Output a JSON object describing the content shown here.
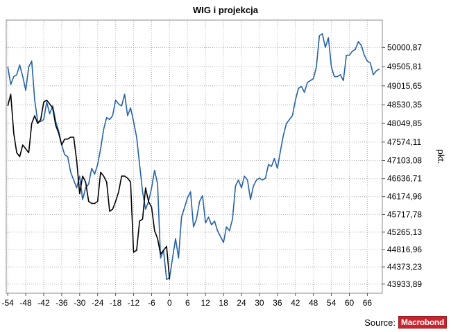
{
  "chart_data": {
    "type": "line",
    "title": "WIG i projekcja",
    "xlabel": "",
    "ylabel": "pkt.",
    "xlim": [
      -54.5,
      71
    ],
    "ylim": [
      43700,
      50700
    ],
    "x_ticks": [
      -54,
      -48,
      -42,
      -36,
      -30,
      -24,
      -18,
      -12,
      -6,
      0,
      6,
      12,
      18,
      24,
      30,
      36,
      42,
      48,
      54,
      60,
      66
    ],
    "y_ticks": [
      43933.89,
      44373.23,
      44816.96,
      45265.13,
      45717.78,
      46174.96,
      46636.71,
      47103.08,
      47574.11,
      48049.85,
      48530.35,
      49015.65,
      49505.81,
      50000.87
    ],
    "y_tick_labels": [
      "43933,89",
      "44373,23",
      "44816,96",
      "45265,13",
      "45717,78",
      "46174,96",
      "46636,71",
      "47103,08",
      "47574,11",
      "48049,85",
      "48530,35",
      "49015,65",
      "49505,81",
      "50000,87"
    ],
    "grid": true,
    "series": [
      {
        "color": "#2461a8",
        "points": [
          [
            -54,
            49500
          ],
          [
            -53,
            49050
          ],
          [
            -52,
            49250
          ],
          [
            -51,
            49300
          ],
          [
            -50,
            49550
          ],
          [
            -49,
            49250
          ],
          [
            -48,
            48900
          ],
          [
            -47,
            49500
          ],
          [
            -46,
            49650
          ],
          [
            -45,
            48650
          ],
          [
            -44,
            48100
          ],
          [
            -43,
            48100
          ],
          [
            -42,
            48150
          ],
          [
            -41,
            48600
          ],
          [
            -40,
            48300
          ],
          [
            -39,
            48500
          ],
          [
            -38,
            48100
          ],
          [
            -37,
            47850
          ],
          [
            -36,
            47500
          ],
          [
            -35,
            47250
          ],
          [
            -34,
            47200
          ],
          [
            -33,
            46800
          ],
          [
            -32,
            46600
          ],
          [
            -31,
            46400
          ],
          [
            -30,
            46700
          ],
          [
            -29,
            46100
          ],
          [
            -28,
            46400
          ],
          [
            -27,
            46500
          ],
          [
            -26,
            46900
          ],
          [
            -25,
            46750
          ],
          [
            -24,
            47000
          ],
          [
            -23,
            47400
          ],
          [
            -22,
            47900
          ],
          [
            -21,
            48200
          ],
          [
            -20,
            48150
          ],
          [
            -19,
            48250
          ],
          [
            -18,
            48650
          ],
          [
            -17,
            48550
          ],
          [
            -16,
            48500
          ],
          [
            -15,
            48800
          ],
          [
            -14,
            48250
          ],
          [
            -13,
            48450
          ],
          [
            -12,
            48100
          ],
          [
            -11,
            47700
          ],
          [
            -10,
            47000
          ],
          [
            -9,
            46300
          ],
          [
            -8,
            45850
          ],
          [
            -7,
            46050
          ],
          [
            -6,
            46400
          ],
          [
            -5,
            46850
          ],
          [
            -4,
            46500
          ],
          [
            -3,
            44600
          ],
          [
            -2,
            44800
          ],
          [
            -1,
            44050
          ],
          [
            0,
            44100
          ],
          [
            1,
            44600
          ],
          [
            2,
            45100
          ],
          [
            3,
            44600
          ],
          [
            4,
            45650
          ],
          [
            5,
            45900
          ],
          [
            6,
            46150
          ],
          [
            7,
            46300
          ],
          [
            8,
            45400
          ],
          [
            9,
            45600
          ],
          [
            10,
            46050
          ],
          [
            11,
            46200
          ],
          [
            12,
            45500
          ],
          [
            13,
            45650
          ],
          [
            14,
            45450
          ],
          [
            15,
            45550
          ],
          [
            16,
            45300
          ],
          [
            17,
            45150
          ],
          [
            18,
            45000
          ],
          [
            19,
            45400
          ],
          [
            20,
            45300
          ],
          [
            21,
            45600
          ],
          [
            22,
            46450
          ],
          [
            23,
            46600
          ],
          [
            24,
            46400
          ],
          [
            25,
            46700
          ],
          [
            26,
            46600
          ],
          [
            27,
            46100
          ],
          [
            28,
            46450
          ],
          [
            29,
            46600
          ],
          [
            30,
            46650
          ],
          [
            31,
            46600
          ],
          [
            32,
            46650
          ],
          [
            33,
            47000
          ],
          [
            34,
            46950
          ],
          [
            35,
            47150
          ],
          [
            36,
            46900
          ],
          [
            37,
            47350
          ],
          [
            38,
            47750
          ],
          [
            39,
            48050
          ],
          [
            40,
            48150
          ],
          [
            41,
            48250
          ],
          [
            42,
            48650
          ],
          [
            43,
            48950
          ],
          [
            44,
            49000
          ],
          [
            45,
            48850
          ],
          [
            46,
            49100
          ],
          [
            47,
            49150
          ],
          [
            48,
            49200
          ],
          [
            49,
            49500
          ],
          [
            50,
            50300
          ],
          [
            51,
            50350
          ],
          [
            52,
            50000
          ],
          [
            53,
            50250
          ],
          [
            54,
            49500
          ],
          [
            55,
            49250
          ],
          [
            56,
            49250
          ],
          [
            57,
            49300
          ],
          [
            58,
            49150
          ],
          [
            59,
            49800
          ],
          [
            60,
            49800
          ],
          [
            61,
            49900
          ],
          [
            62,
            49950
          ],
          [
            63,
            50150
          ],
          [
            64,
            50050
          ],
          [
            65,
            49800
          ],
          [
            66,
            49650
          ],
          [
            67,
            49600
          ],
          [
            68,
            49300
          ],
          [
            69,
            49400
          ],
          [
            70,
            49450
          ]
        ]
      },
      {
        "color": "#000000",
        "points": [
          [
            -54,
            48500
          ],
          [
            -53,
            48800
          ],
          [
            -52,
            47800
          ],
          [
            -51,
            47300
          ],
          [
            -50,
            47200
          ],
          [
            -49,
            47500
          ],
          [
            -48,
            47400
          ],
          [
            -47,
            47300
          ],
          [
            -46,
            48050
          ],
          [
            -45,
            48250
          ],
          [
            -44,
            48050
          ],
          [
            -43,
            48150
          ],
          [
            -42,
            48600
          ],
          [
            -41,
            48650
          ],
          [
            -40,
            48550
          ],
          [
            -39,
            48450
          ],
          [
            -38,
            48000
          ],
          [
            -37,
            47800
          ],
          [
            -36,
            47500
          ],
          [
            -35,
            47650
          ],
          [
            -34,
            47650
          ],
          [
            -33,
            47700
          ],
          [
            -32,
            47700
          ],
          [
            -31,
            47100
          ],
          [
            -30,
            46250
          ],
          [
            -29,
            46700
          ],
          [
            -28,
            46550
          ],
          [
            -27,
            46050
          ],
          [
            -26,
            46000
          ],
          [
            -25,
            46000
          ],
          [
            -24,
            46050
          ],
          [
            -23,
            46800
          ],
          [
            -22,
            46700
          ],
          [
            -21,
            46550
          ],
          [
            -20,
            45800
          ],
          [
            -19,
            45850
          ],
          [
            -18,
            46050
          ],
          [
            -17,
            46300
          ],
          [
            -16,
            46700
          ],
          [
            -15,
            46700
          ],
          [
            -14,
            46650
          ],
          [
            -13,
            46550
          ],
          [
            -12,
            44750
          ],
          [
            -11,
            44800
          ],
          [
            -10,
            45550
          ],
          [
            -9,
            45600
          ],
          [
            -8,
            46400
          ],
          [
            -7,
            46050
          ],
          [
            -6,
            45900
          ],
          [
            -5,
            45300
          ],
          [
            -4,
            45100
          ],
          [
            -3,
            44700
          ],
          [
            -2,
            44800
          ],
          [
            -1,
            44900
          ],
          [
            0,
            44050
          ]
        ]
      }
    ]
  },
  "footer": {
    "source_label": "Source:",
    "brand": "Macrobond"
  }
}
